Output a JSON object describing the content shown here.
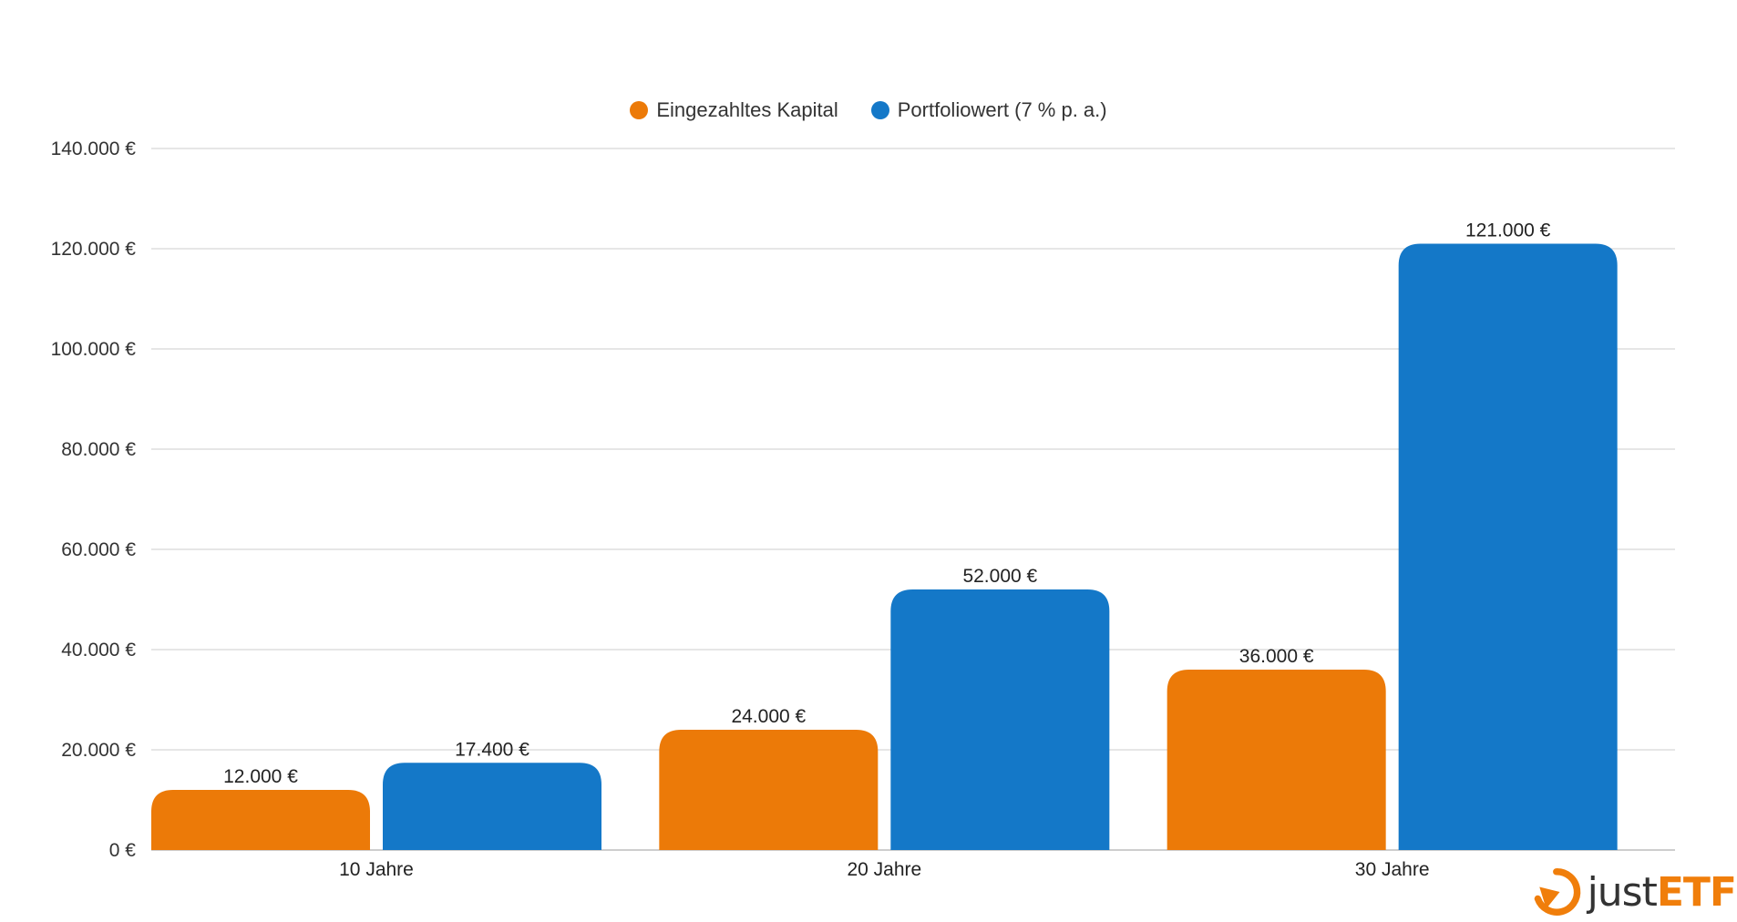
{
  "chart_data": {
    "type": "bar",
    "categories": [
      "10 Jahre",
      "20 Jahre",
      "30 Jahre"
    ],
    "series": [
      {
        "name": "Eingezahltes Kapital",
        "values": [
          12000,
          24000,
          36000
        ],
        "labels": [
          "12.000 €",
          "24.000 €",
          "36.000 €"
        ],
        "color": "#ec7a08"
      },
      {
        "name": "Portfoliowert (7 % p. a.)",
        "values": [
          17400,
          52000,
          121000
        ],
        "labels": [
          "17.400 €",
          "52.000 €",
          "121.000 €"
        ],
        "color": "#1478c8"
      }
    ],
    "ylim": [
      0,
      140000
    ],
    "yticks": [
      0,
      20000,
      40000,
      60000,
      80000,
      100000,
      120000,
      140000
    ],
    "ytick_labels": [
      "0 €",
      "20.000 €",
      "40.000 €",
      "60.000 €",
      "80.000 €",
      "100.000 €",
      "120.000 €",
      "140.000 €"
    ],
    "grid": true,
    "legend_position": "top-center"
  },
  "legend": {
    "items": [
      {
        "label": "Eingezahltes Kapital",
        "color": "#ec7a08"
      },
      {
        "label": "Portfoliowert (7 % p. a.)",
        "color": "#1478c8"
      }
    ]
  },
  "brand": {
    "just": "just",
    "etf": "ETF",
    "icon": "justetf-logo-icon",
    "color": "#f07e0b"
  }
}
